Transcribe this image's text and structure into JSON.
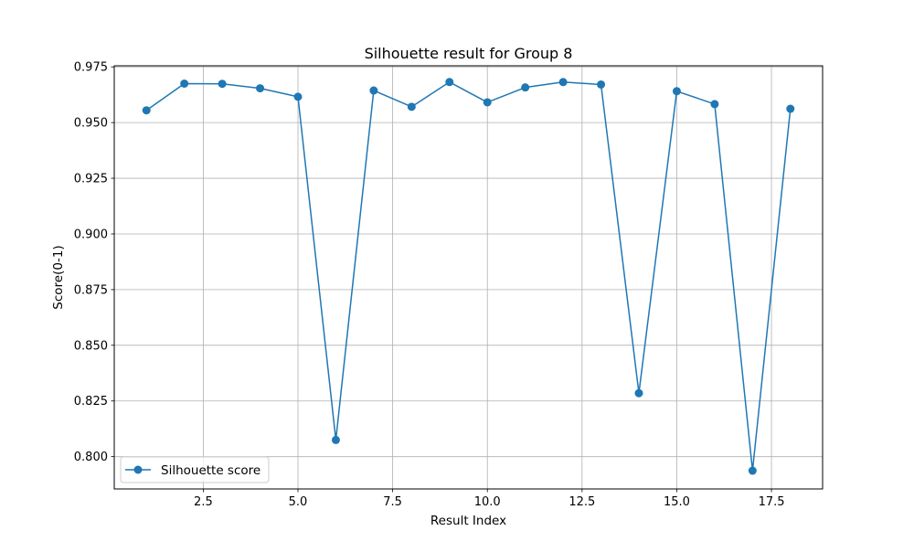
{
  "chart_data": {
    "type": "line",
    "title": "Silhouette result for Group 8",
    "xlabel": "Result Index",
    "ylabel": "Score(0-1)",
    "xlim": [
      0.15,
      18.85
    ],
    "ylim": [
      0.7855,
      0.9755
    ],
    "grid": true,
    "legend_position": "lower-left",
    "x_ticks": [
      2.5,
      5.0,
      7.5,
      10.0,
      12.5,
      15.0,
      17.5
    ],
    "x_tick_labels": [
      "2.5",
      "5.0",
      "7.5",
      "10.0",
      "12.5",
      "15.0",
      "17.5"
    ],
    "y_ticks": [
      0.8,
      0.825,
      0.85,
      0.875,
      0.9,
      0.925,
      0.95,
      0.975
    ],
    "y_tick_labels": [
      "0.800",
      "0.825",
      "0.850",
      "0.875",
      "0.900",
      "0.925",
      "0.950",
      "0.975"
    ],
    "series": [
      {
        "name": "Silhouette score",
        "color": "#1f77b4",
        "marker": "circle",
        "x": [
          1,
          2,
          3,
          4,
          5,
          6,
          7,
          8,
          9,
          10,
          11,
          12,
          13,
          14,
          15,
          16,
          17,
          18
        ],
        "values": [
          0.9555,
          0.9675,
          0.9674,
          0.9654,
          0.9616,
          0.8075,
          0.9644,
          0.9571,
          0.9682,
          0.9591,
          0.9658,
          0.9682,
          0.9671,
          0.8285,
          0.9641,
          0.9583,
          0.7937,
          0.9562
        ]
      }
    ]
  }
}
